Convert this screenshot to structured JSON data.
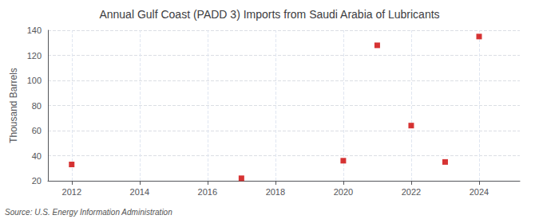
{
  "chart_data": {
    "type": "scatter",
    "title": "Annual Gulf Coast (PADD 3) Imports from Saudi Arabia of Lubricants",
    "ylabel": "Thousand Barrels",
    "annotation": "Source: U.S. Energy Information Administration",
    "x": [
      2012,
      2017,
      2020,
      2021,
      2022,
      2023,
      2024
    ],
    "values": [
      33,
      22,
      36,
      128,
      64,
      35,
      135
    ],
    "color": "#cc0000",
    "marker": "square",
    "xlim": [
      2011.3,
      2025.2
    ],
    "xticks": [
      2012,
      2014,
      2016,
      2018,
      2020,
      2022,
      2024
    ],
    "ylim": [
      20,
      140
    ],
    "yticks": [
      20,
      40,
      60,
      80,
      100,
      120,
      140
    ],
    "grid": true
  }
}
